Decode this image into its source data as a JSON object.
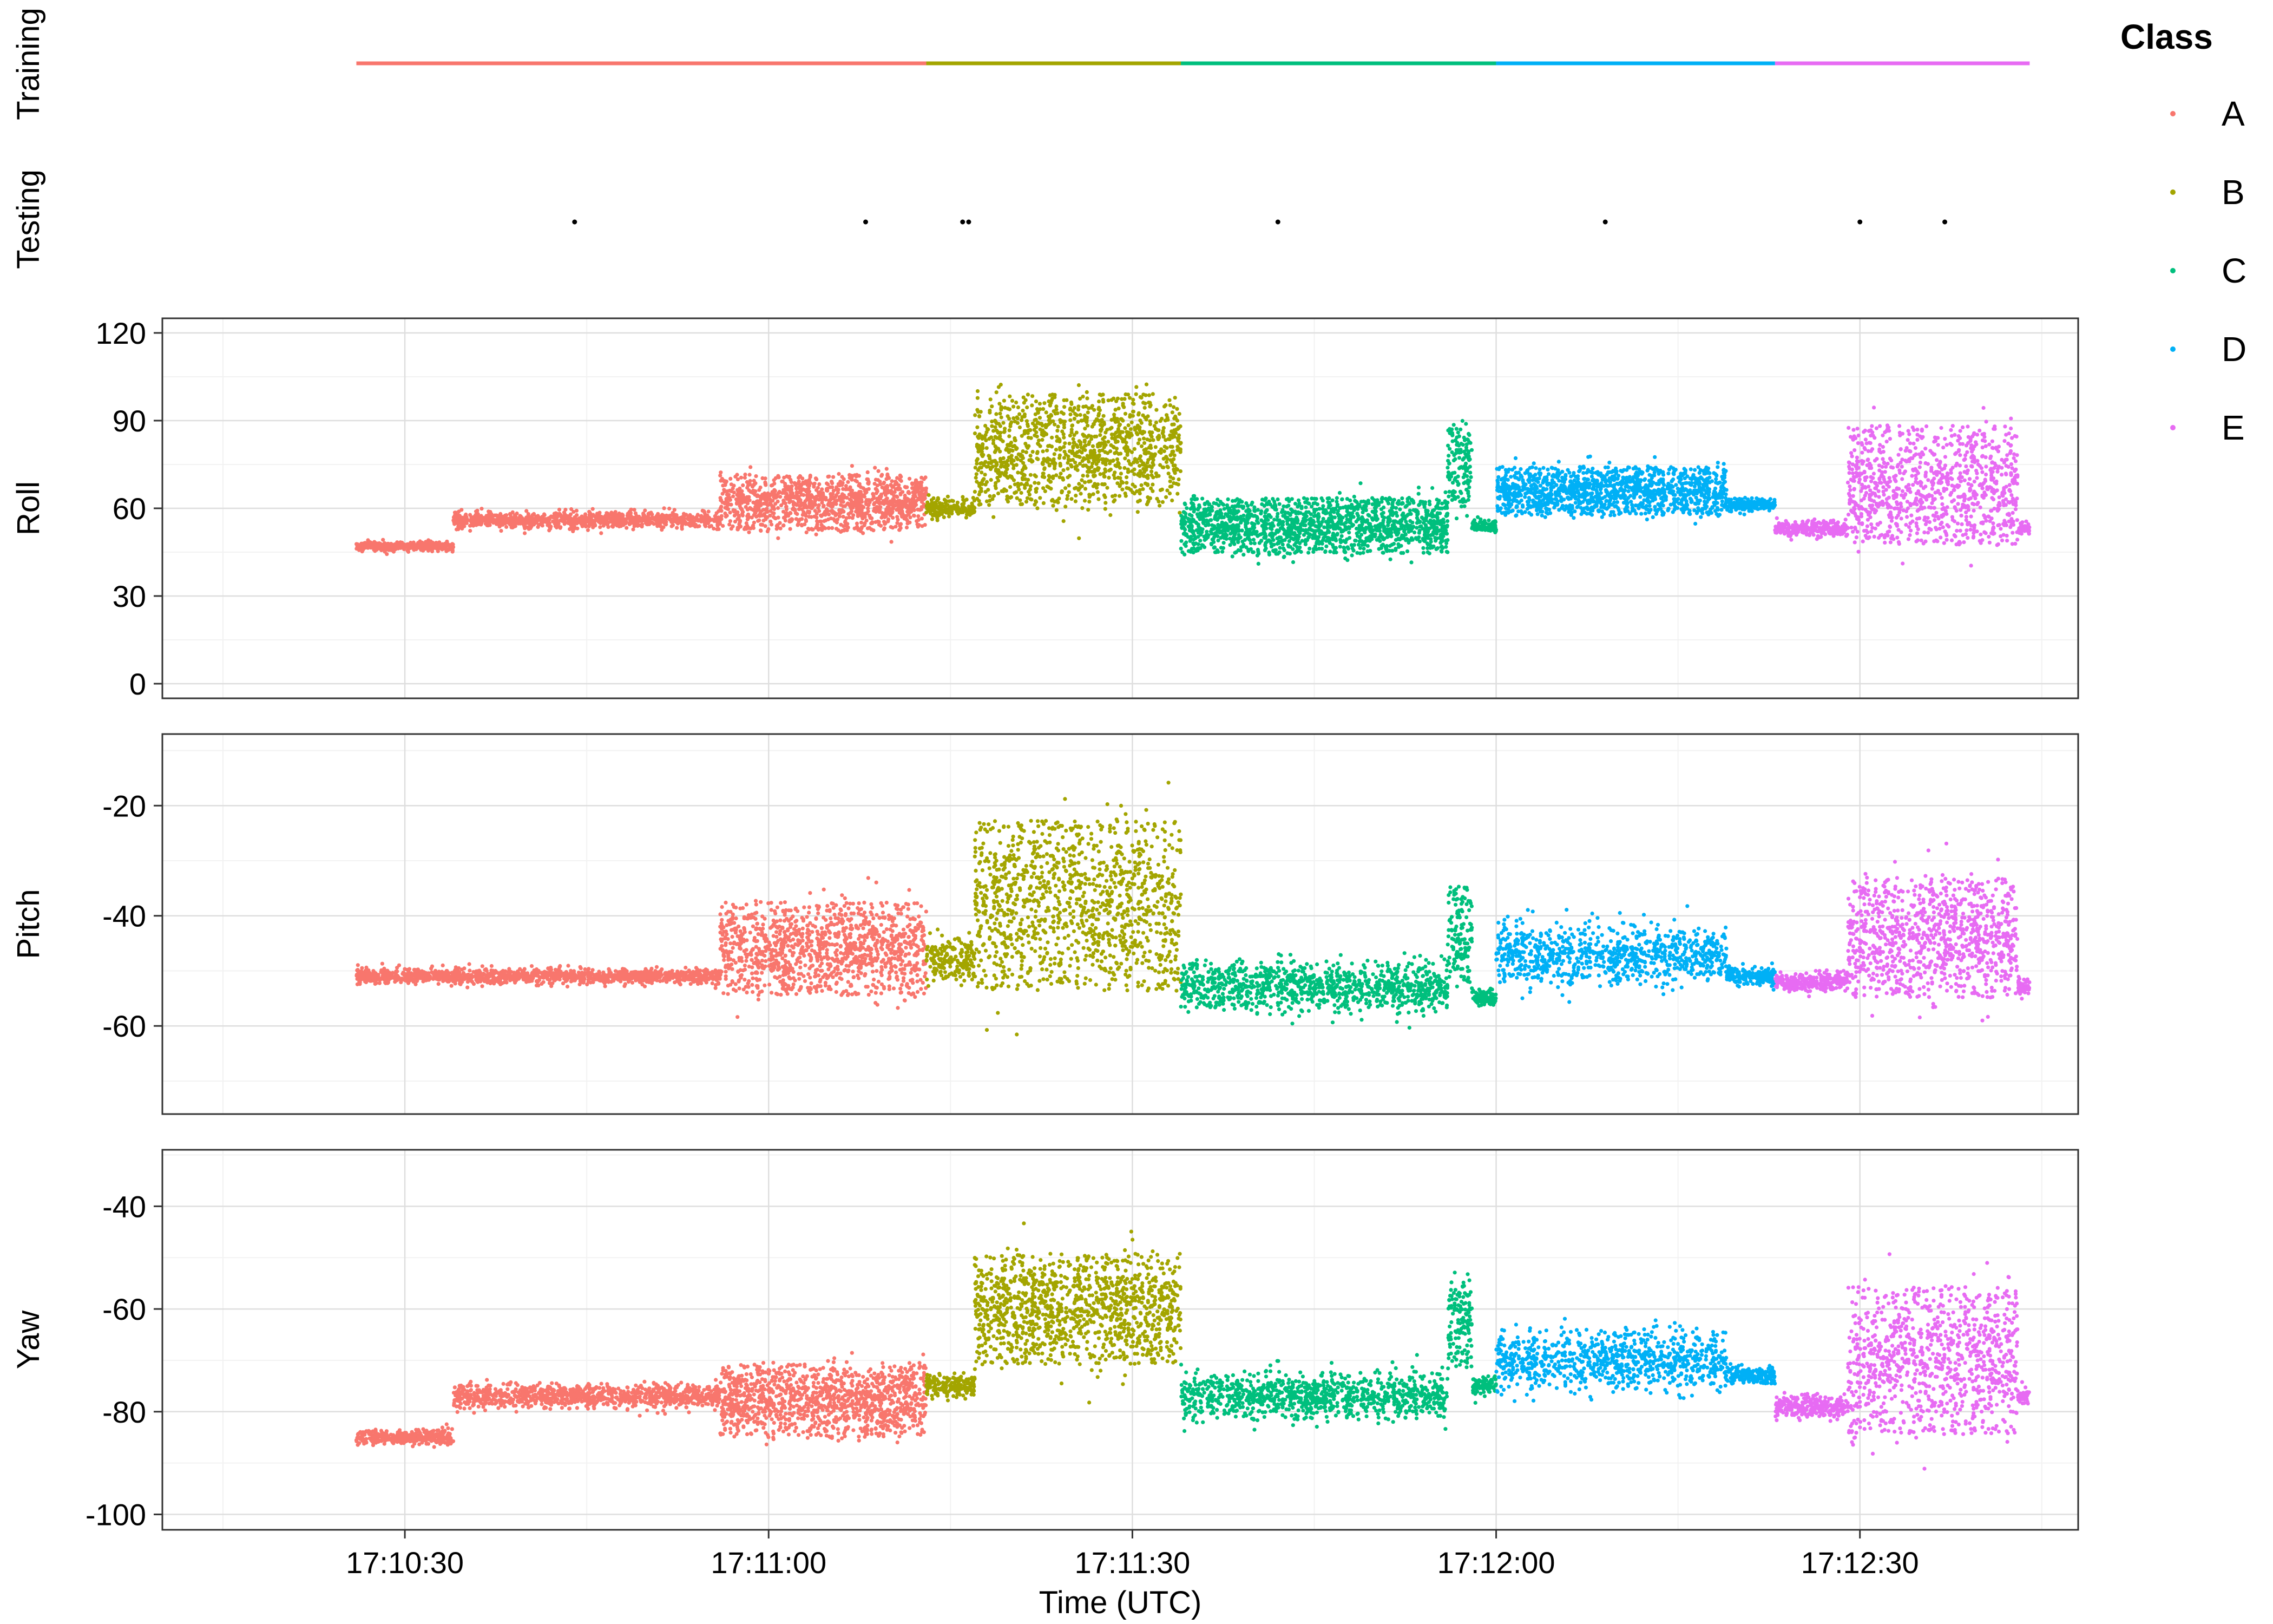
{
  "chart_data": {
    "type": "scatter",
    "xlabel": "Time (UTC)",
    "time_start": "17:10:26",
    "time_end": "17:12:44",
    "x_ticks": [
      "17:10:30",
      "17:11:00",
      "17:11:30",
      "17:12:00",
      "17:12:30"
    ],
    "strips": [
      {
        "name": "Training",
        "style": "continuous"
      },
      {
        "name": "Testing",
        "style": "sparse",
        "points": [
          "17:10:44",
          "17:11:08",
          "17:11:16",
          "17:11:16.5",
          "17:11:42",
          "17:12:09",
          "17:12:30",
          "17:12:37"
        ]
      }
    ],
    "legend": {
      "title": "Class",
      "placement": "right",
      "entries": [
        {
          "name": "A",
          "color": "#F8766D"
        },
        {
          "name": "B",
          "color": "#A3A500"
        },
        {
          "name": "C",
          "color": "#00BF7D"
        },
        {
          "name": "D",
          "color": "#00B0F6"
        },
        {
          "name": "E",
          "color": "#E76BF3"
        }
      ]
    },
    "class_segments": [
      {
        "class": "A",
        "start": "17:10:26",
        "end": "17:11:13"
      },
      {
        "class": "B",
        "start": "17:11:13",
        "end": "17:11:34"
      },
      {
        "class": "C",
        "start": "17:11:34",
        "end": "17:12:00"
      },
      {
        "class": "D",
        "start": "17:12:00",
        "end": "17:12:23"
      },
      {
        "class": "E",
        "start": "17:12:23",
        "end": "17:12:44"
      }
    ],
    "panels": [
      {
        "ylabel": "Roll",
        "ylim": [
          -5,
          125
        ],
        "y_ticks": [
          0,
          30,
          60,
          90,
          120
        ],
        "grid": true,
        "segments": [
          {
            "start": "17:10:26",
            "end": "17:10:34",
            "class": "A",
            "center": 47,
            "spread": 1.5
          },
          {
            "start": "17:10:34",
            "end": "17:10:56",
            "class": "A",
            "center": 56,
            "spread": 2.5
          },
          {
            "start": "17:10:56",
            "end": "17:11:13",
            "class": "A",
            "center": 62,
            "spread": 8
          },
          {
            "start": "17:11:13",
            "end": "17:11:17",
            "class": "B",
            "center": 60,
            "spread": 3
          },
          {
            "start": "17:11:17",
            "end": "17:11:34",
            "class": "B",
            "center": 80,
            "spread": 16
          },
          {
            "start": "17:11:34",
            "end": "17:11:56",
            "class": "C",
            "center": 54,
            "spread": 8
          },
          {
            "start": "17:11:56",
            "end": "17:11:58",
            "class": "C",
            "center": 75,
            "spread": 12
          },
          {
            "start": "17:11:58",
            "end": "17:12:00",
            "class": "C",
            "center": 54,
            "spread": 2
          },
          {
            "start": "17:12:00",
            "end": "17:12:19",
            "class": "D",
            "center": 66,
            "spread": 7
          },
          {
            "start": "17:12:19",
            "end": "17:12:23",
            "class": "D",
            "center": 61,
            "spread": 2
          },
          {
            "start": "17:12:23",
            "end": "17:12:29",
            "class": "E",
            "center": 53,
            "spread": 2.5
          },
          {
            "start": "17:12:29",
            "end": "17:12:43",
            "class": "E",
            "center": 68,
            "spread": 17
          },
          {
            "start": "17:12:43",
            "end": "17:12:44",
            "class": "E",
            "center": 53,
            "spread": 2
          }
        ]
      },
      {
        "ylabel": "Pitch",
        "ylim": [
          -76,
          -7
        ],
        "y_ticks": [
          -60,
          -40,
          -20
        ],
        "grid": true,
        "segments": [
          {
            "start": "17:10:26",
            "end": "17:10:56",
            "class": "A",
            "center": -51,
            "spread": 1.2
          },
          {
            "start": "17:10:56",
            "end": "17:11:13",
            "class": "A",
            "center": -46,
            "spread": 7
          },
          {
            "start": "17:11:13",
            "end": "17:11:17",
            "class": "B",
            "center": -48,
            "spread": 4
          },
          {
            "start": "17:11:17",
            "end": "17:11:34",
            "class": "B",
            "center": -38,
            "spread": 13
          },
          {
            "start": "17:11:34",
            "end": "17:11:56",
            "class": "C",
            "center": -53,
            "spread": 4
          },
          {
            "start": "17:11:56",
            "end": "17:11:58",
            "class": "C",
            "center": -44,
            "spread": 8
          },
          {
            "start": "17:11:58",
            "end": "17:12:00",
            "class": "C",
            "center": -55,
            "spread": 1.5
          },
          {
            "start": "17:12:00",
            "end": "17:12:19",
            "class": "D",
            "center": -47,
            "spread": 5
          },
          {
            "start": "17:12:19",
            "end": "17:12:23",
            "class": "D",
            "center": -51,
            "spread": 1.5
          },
          {
            "start": "17:12:23",
            "end": "17:12:29",
            "class": "E",
            "center": -52,
            "spread": 1.5
          },
          {
            "start": "17:12:29",
            "end": "17:12:43",
            "class": "E",
            "center": -44,
            "spread": 9
          },
          {
            "start": "17:12:43",
            "end": "17:12:44",
            "class": "E",
            "center": -53,
            "spread": 1.5
          }
        ]
      },
      {
        "ylabel": "Yaw",
        "ylim": [
          -103,
          -29
        ],
        "y_ticks": [
          -100,
          -80,
          -60,
          -40
        ],
        "grid": true,
        "segments": [
          {
            "start": "17:10:26",
            "end": "17:10:34",
            "class": "A",
            "center": -85,
            "spread": 1.2
          },
          {
            "start": "17:10:34",
            "end": "17:10:56",
            "class": "A",
            "center": -77,
            "spread": 2
          },
          {
            "start": "17:10:56",
            "end": "17:11:13",
            "class": "A",
            "center": -78,
            "spread": 6
          },
          {
            "start": "17:11:13",
            "end": "17:11:17",
            "class": "B",
            "center": -75,
            "spread": 2
          },
          {
            "start": "17:11:17",
            "end": "17:11:34",
            "class": "B",
            "center": -60,
            "spread": 9
          },
          {
            "start": "17:11:34",
            "end": "17:11:56",
            "class": "C",
            "center": -77,
            "spread": 4
          },
          {
            "start": "17:11:56",
            "end": "17:11:58",
            "class": "C",
            "center": -62,
            "spread": 8
          },
          {
            "start": "17:11:58",
            "end": "17:12:00",
            "class": "C",
            "center": -75,
            "spread": 1.5
          },
          {
            "start": "17:12:00",
            "end": "17:12:19",
            "class": "D",
            "center": -70,
            "spread": 5
          },
          {
            "start": "17:12:19",
            "end": "17:12:23",
            "class": "D",
            "center": -73,
            "spread": 1.5
          },
          {
            "start": "17:12:23",
            "end": "17:12:29",
            "class": "E",
            "center": -79,
            "spread": 2
          },
          {
            "start": "17:12:29",
            "end": "17:12:43",
            "class": "E",
            "center": -70,
            "spread": 12
          },
          {
            "start": "17:12:43",
            "end": "17:12:44",
            "class": "E",
            "center": -77,
            "spread": 1.5
          }
        ]
      }
    ]
  }
}
